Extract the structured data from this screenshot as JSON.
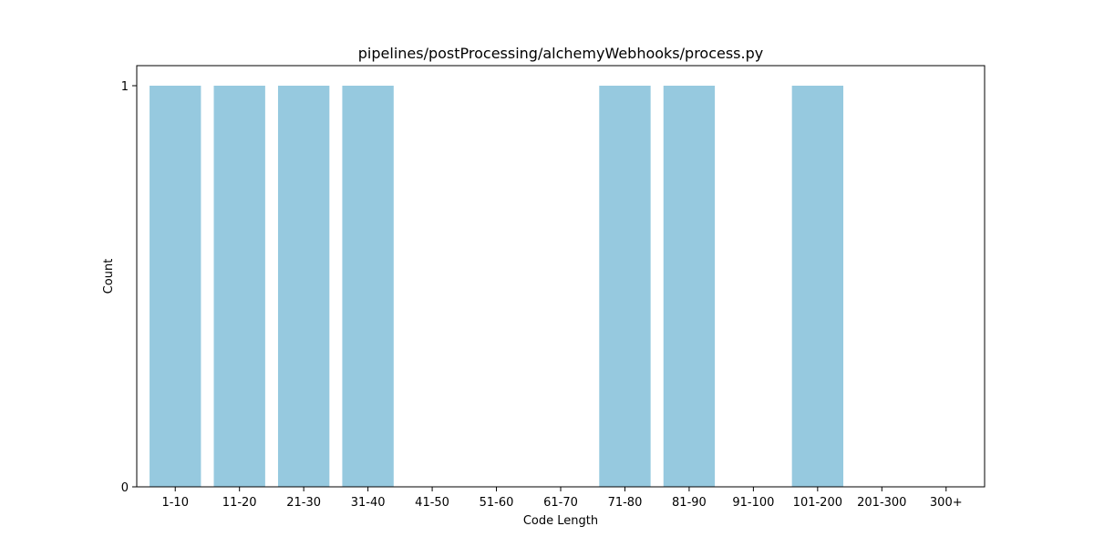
{
  "chart_data": {
    "type": "bar",
    "title": "pipelines/postProcessing/alchemyWebhooks/process.py",
    "xlabel": "Code Length",
    "ylabel": "Count",
    "categories": [
      "1-10",
      "11-20",
      "21-30",
      "31-40",
      "41-50",
      "51-60",
      "61-70",
      "71-80",
      "81-90",
      "91-100",
      "101-200",
      "201-300",
      "300+"
    ],
    "values": [
      1,
      1,
      1,
      1,
      0,
      0,
      0,
      1,
      1,
      0,
      1,
      0,
      0
    ],
    "yticks": [
      "0",
      "1"
    ],
    "ylim": [
      0,
      1.05
    ],
    "grid": false,
    "bar_color": "#96c9df"
  }
}
